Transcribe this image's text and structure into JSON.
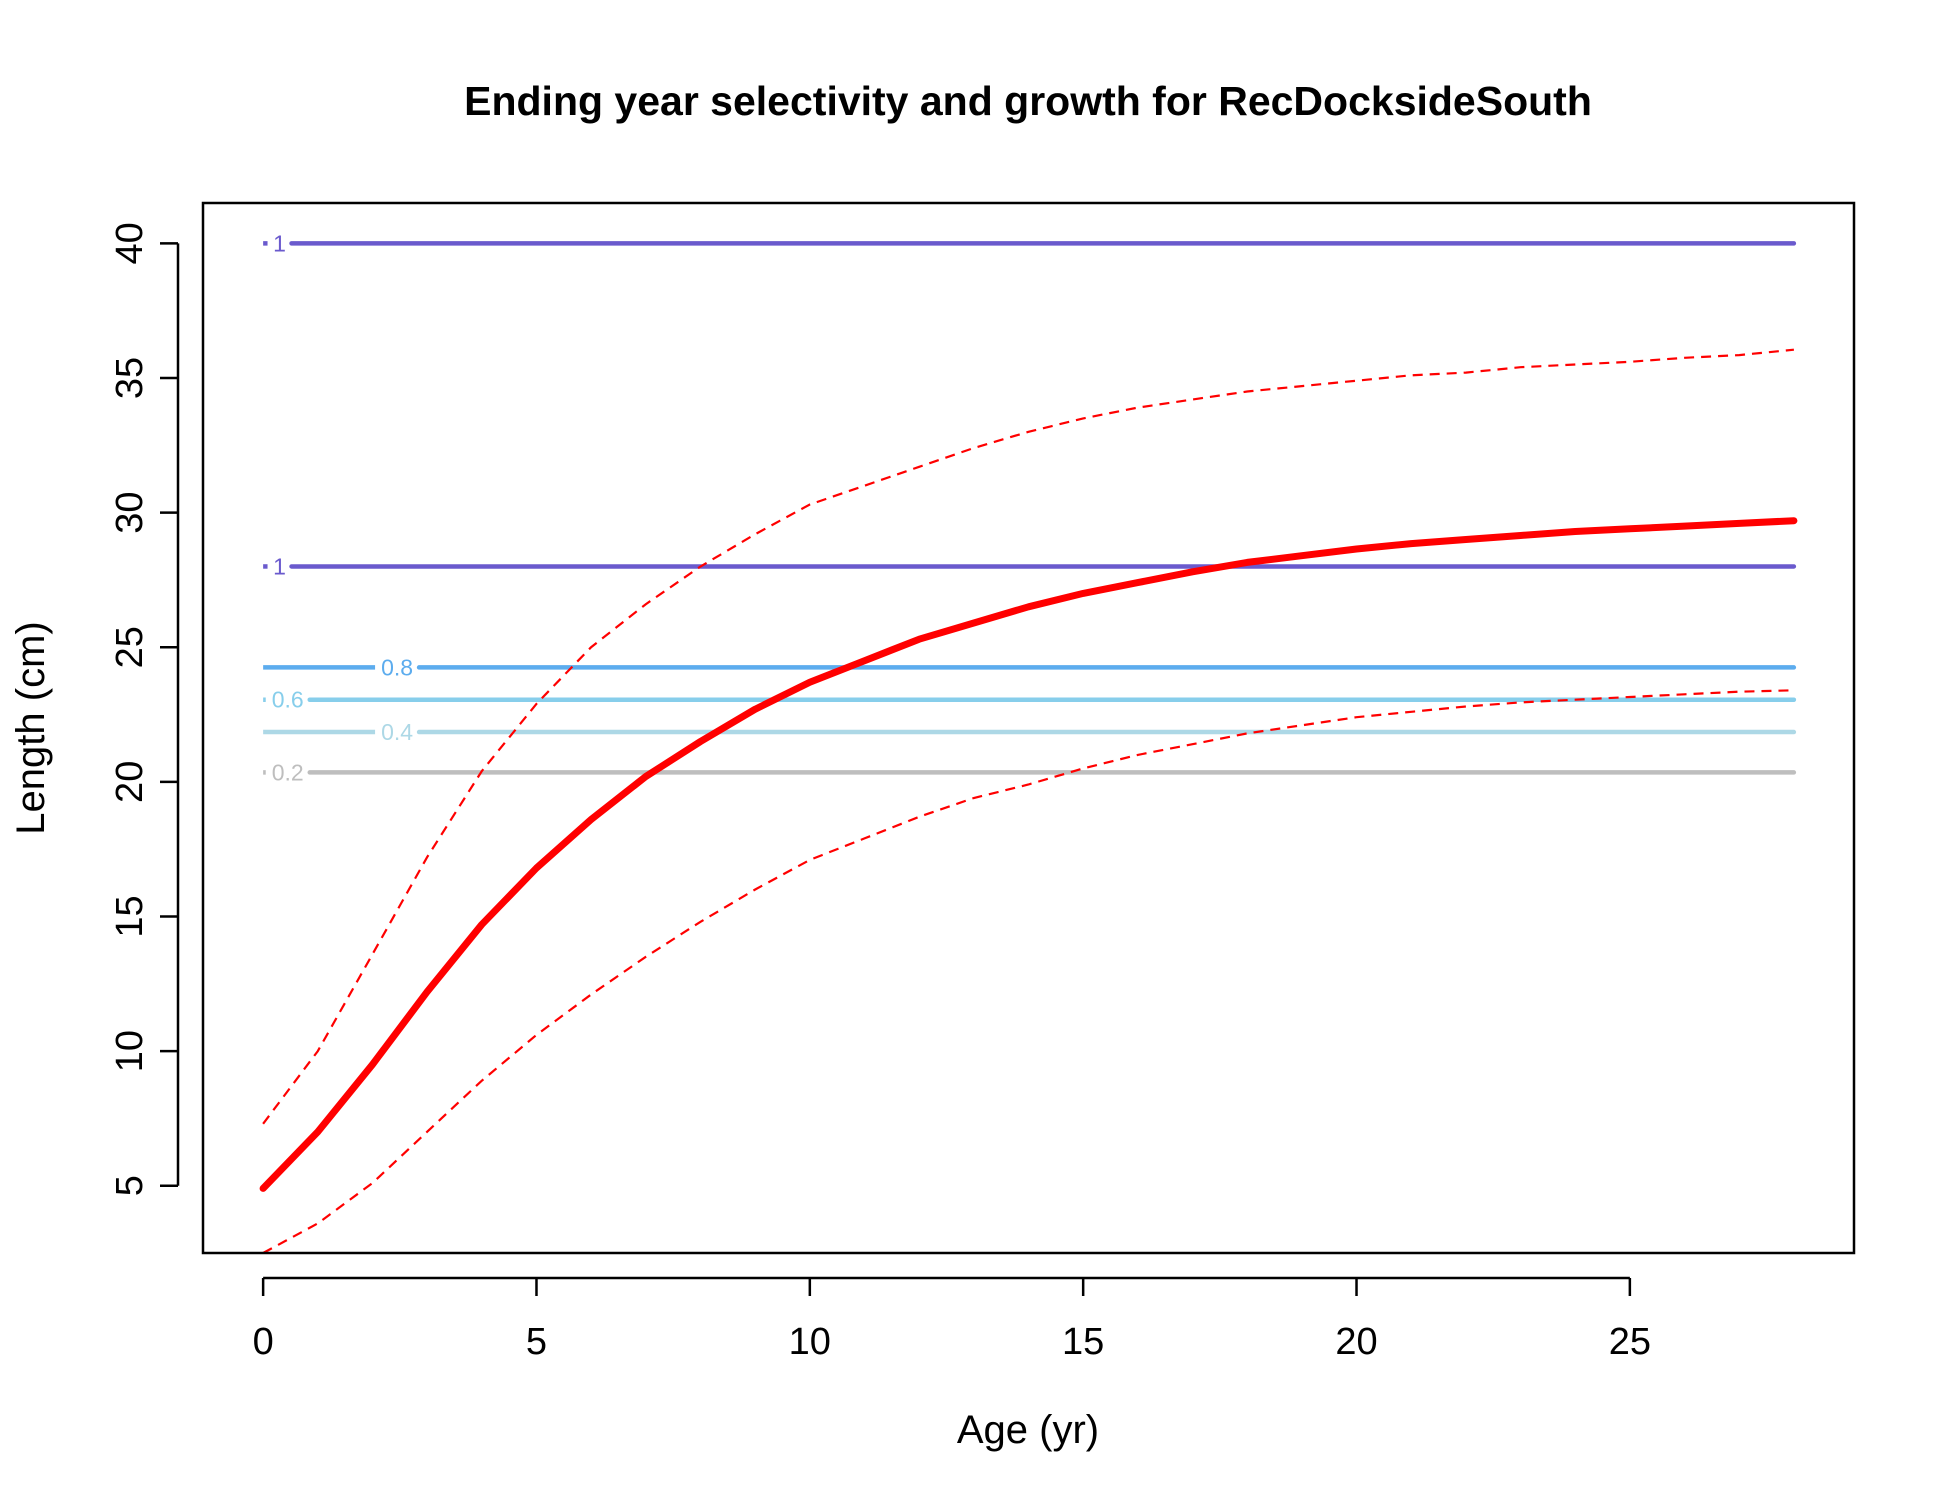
{
  "chart_data": {
    "type": "line",
    "title": "Ending year selectivity and growth for RecDocksideSouth",
    "xlabel": "Age (yr)",
    "ylabel": "Length (cm)",
    "xlim": [
      -1.1,
      29.1
    ],
    "ylim": [
      2.5,
      41.5
    ],
    "x_ticks": [
      0,
      5,
      10,
      15,
      20,
      25
    ],
    "y_ticks": [
      5,
      10,
      15,
      20,
      25,
      30,
      35,
      40
    ],
    "grid": false,
    "legend": "none",
    "growth": {
      "color": "#ff0000",
      "ages": [
        0,
        1,
        2,
        3,
        4,
        5,
        6,
        7,
        8,
        9,
        10,
        11,
        12,
        13,
        14,
        15,
        16,
        17,
        18,
        19,
        20,
        21,
        22,
        23,
        24,
        25,
        26,
        27,
        28
      ],
      "mean": [
        4.9,
        7.0,
        9.5,
        12.2,
        14.7,
        16.8,
        18.6,
        20.2,
        21.5,
        22.7,
        23.7,
        24.5,
        25.3,
        25.9,
        26.5,
        27.0,
        27.4,
        27.8,
        28.15,
        28.4,
        28.65,
        28.85,
        29.0,
        29.15,
        29.3,
        29.4,
        29.5,
        29.6,
        29.7
      ],
      "upper": [
        7.3,
        10.0,
        13.6,
        17.2,
        20.4,
        22.9,
        25.0,
        26.6,
        28.0,
        29.2,
        30.3,
        31.0,
        31.7,
        32.4,
        33.0,
        33.5,
        33.9,
        34.2,
        34.5,
        34.7,
        34.9,
        35.1,
        35.2,
        35.4,
        35.5,
        35.6,
        35.75,
        35.85,
        36.05
      ],
      "lower": [
        2.5,
        3.6,
        5.1,
        7.0,
        8.9,
        10.6,
        12.1,
        13.5,
        14.8,
        16.0,
        17.1,
        17.9,
        18.7,
        19.4,
        19.9,
        20.5,
        21.0,
        21.4,
        21.8,
        22.1,
        22.4,
        22.6,
        22.8,
        22.95,
        23.05,
        23.15,
        23.25,
        23.35,
        23.4
      ]
    },
    "selectivity_contours": [
      {
        "label": "1",
        "length": 40.0,
        "color": "#6a5acd",
        "label_x": 0.3
      },
      {
        "label": "1",
        "length": 28.0,
        "color": "#6a5acd",
        "label_x": 0.3
      },
      {
        "label": "0.8",
        "length": 24.25,
        "color": "#5cacee",
        "label_x": 2.45
      },
      {
        "label": "0.6",
        "length": 23.05,
        "color": "#87ceeb",
        "label_x": 0.45
      },
      {
        "label": "0.4",
        "length": 21.85,
        "color": "#add8e6",
        "label_x": 2.45
      },
      {
        "label": "0.2",
        "length": 20.35,
        "color": "#bebebe",
        "label_x": 0.45
      }
    ],
    "contour_x_range": [
      0,
      28
    ]
  }
}
